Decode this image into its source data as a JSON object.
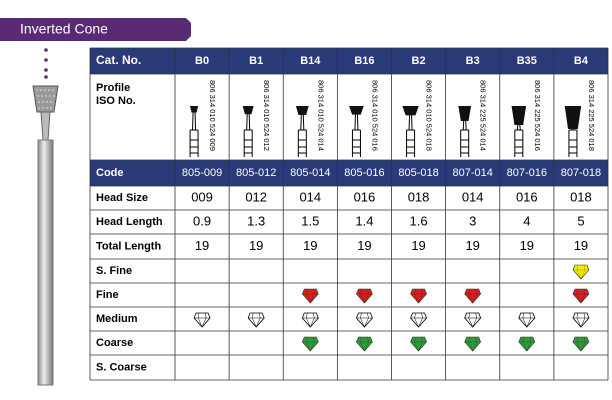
{
  "header": {
    "title": "Inverted Cone"
  },
  "table": {
    "cat_no_label": "Cat. No.",
    "columns": [
      "B0",
      "B1",
      "B14",
      "B16",
      "B2",
      "B3",
      "B35",
      "B4"
    ],
    "profile_label": "Profile",
    "iso_label": "ISO No.",
    "iso_numbers": [
      "806 314 010 524 009",
      "806 314 010 524 012",
      "806 314 010 524 014",
      "806 314 010 524 016",
      "806 314 010 524 018",
      "806 314 225 524 014",
      "806 314 225 524 016",
      "806 314 225 524 018"
    ],
    "code_row": {
      "label": "Code",
      "values": [
        "805-009",
        "805-012",
        "805-014",
        "805-016",
        "805-018",
        "807-014",
        "807-016",
        "807-018"
      ]
    },
    "rows": [
      {
        "label": "Head Size",
        "values": [
          "009",
          "012",
          "014",
          "016",
          "018",
          "014",
          "016",
          "018"
        ]
      },
      {
        "label": "Head Length",
        "values": [
          "0.9",
          "1.3",
          "1.5",
          "1.4",
          "1.6",
          "3",
          "4",
          "5"
        ]
      },
      {
        "label": "Total Length",
        "values": [
          "19",
          "19",
          "19",
          "19",
          "19",
          "19",
          "19",
          "19"
        ]
      }
    ],
    "grits": [
      {
        "label": "S. Fine",
        "color": "#f4e800",
        "available": [
          false,
          false,
          false,
          false,
          false,
          false,
          false,
          true
        ]
      },
      {
        "label": "Fine",
        "color": "#d42020",
        "available": [
          false,
          false,
          true,
          true,
          true,
          true,
          false,
          true
        ]
      },
      {
        "label": "Medium",
        "color": "#ffffff",
        "available": [
          true,
          true,
          true,
          true,
          true,
          true,
          true,
          true
        ]
      },
      {
        "label": "Coarse",
        "color": "#2e9a3a",
        "available": [
          false,
          false,
          true,
          true,
          true,
          true,
          true,
          true
        ]
      },
      {
        "label": "S. Coarse",
        "color": "#222222",
        "available": [
          false,
          false,
          false,
          false,
          false,
          false,
          false,
          false
        ]
      }
    ]
  }
}
